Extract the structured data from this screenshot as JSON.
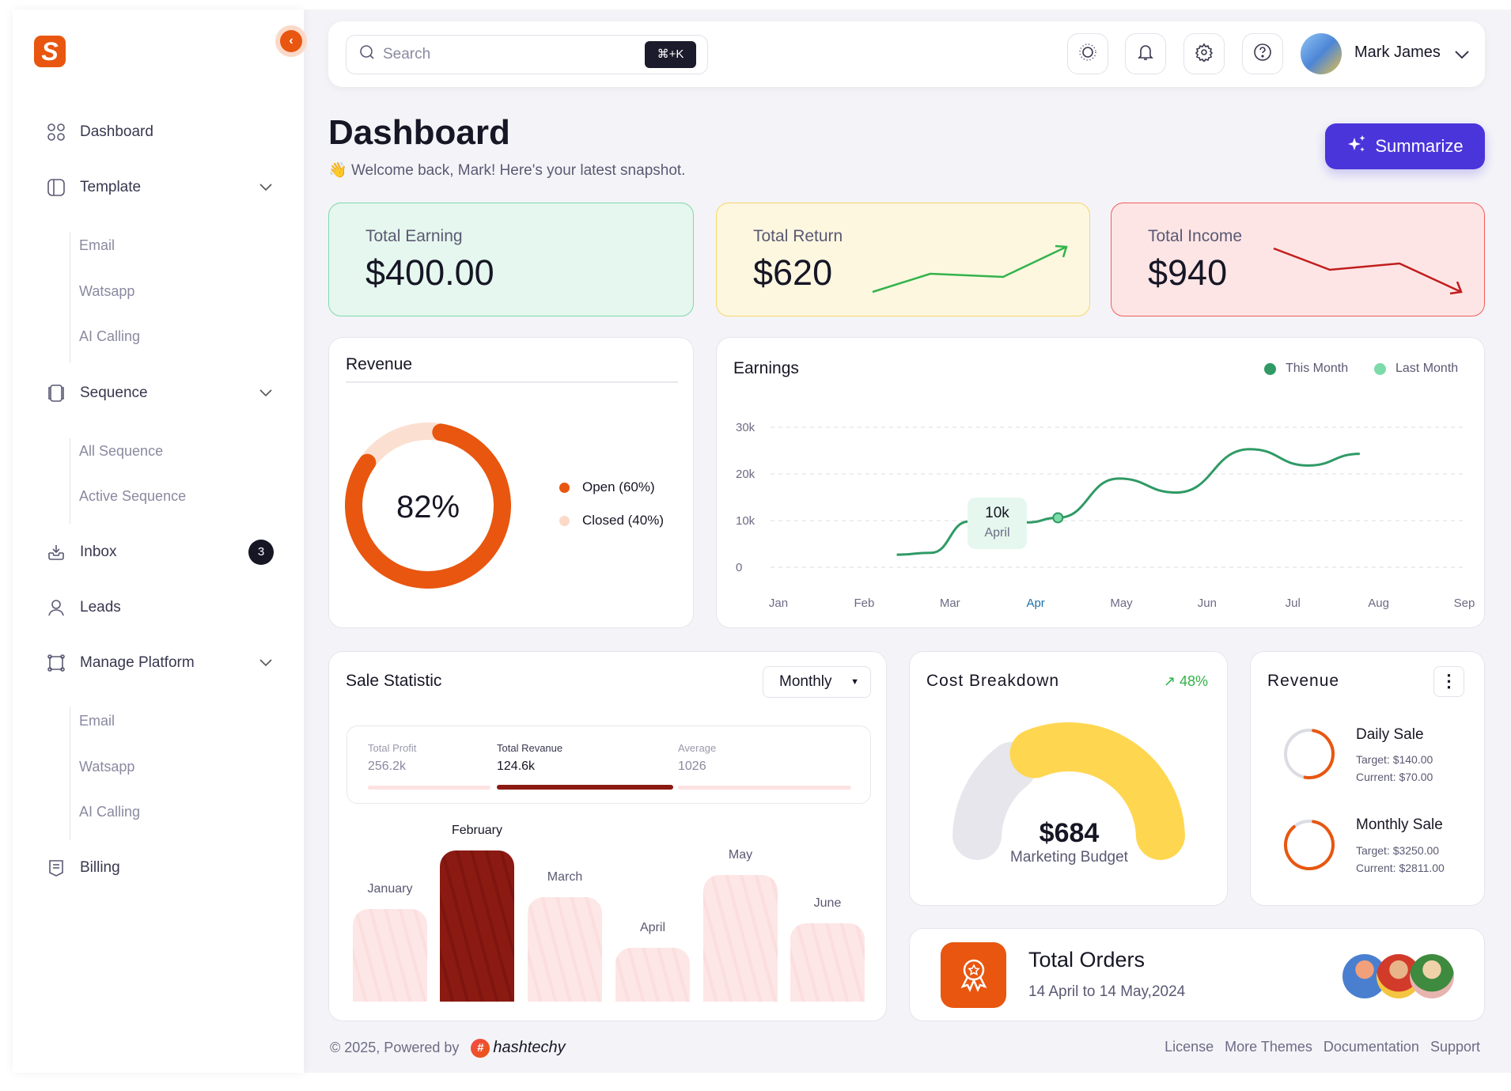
{
  "sidebar": {
    "logo_letter": "S",
    "items": [
      {
        "label": "Dashboard",
        "icon": "grid-icon"
      },
      {
        "label": "Template",
        "icon": "template-icon",
        "children": [
          "Email",
          "Watsapp",
          "AI Calling"
        ]
      },
      {
        "label": "Sequence",
        "icon": "sequence-icon",
        "children": [
          "All Sequence",
          "Active Sequence"
        ]
      },
      {
        "label": "Inbox",
        "icon": "inbox-icon",
        "badge": "3"
      },
      {
        "label": "Leads",
        "icon": "user-icon"
      },
      {
        "label": "Manage Platform",
        "icon": "frame-icon",
        "children": [
          "Email",
          "Watsapp",
          "AI Calling"
        ]
      },
      {
        "label": "Billing",
        "icon": "receipt-icon"
      }
    ]
  },
  "topbar": {
    "search_placeholder": "Search",
    "shortcut": "⌘+K",
    "icons": [
      "sun-icon",
      "bell-icon",
      "gear-icon",
      "help-icon"
    ],
    "user_name": "Mark James"
  },
  "header": {
    "title": "Dashboard",
    "welcome_emoji": "👋",
    "welcome": "Welcome back, Mark! Here's your latest snapshot.",
    "summarize_label": "Summarize"
  },
  "stats": [
    {
      "label": "Total Earning",
      "value": "$400.00",
      "color": "#7fd8ad",
      "bg": "#e5f7ee"
    },
    {
      "label": "Total Return",
      "value": "$620",
      "color": "#f6d76a",
      "bg": "#fdf7e0",
      "trend": "up"
    },
    {
      "label": "Total Income",
      "value": "$940",
      "color": "#f05c5c",
      "bg": "#fde5e5",
      "trend": "down"
    }
  ],
  "revenue_donut": {
    "title": "Revenue",
    "center_label": "82%",
    "percent": 82,
    "legend": [
      {
        "label": "Open (60%)",
        "color": "#e8560f"
      },
      {
        "label": "Closed (40%)",
        "color": "#fbd9c8"
      }
    ]
  },
  "chart_data": [
    {
      "type": "line",
      "title": "Earnings",
      "legend": [
        {
          "name": "This Month",
          "color": "#2f9a65"
        },
        {
          "name": "Last Month",
          "color": "#7ddbaa"
        }
      ],
      "legend_placement": "top-right",
      "x_ticks": [
        "Jan",
        "Feb",
        "Mar",
        "Apr",
        "May",
        "Jun",
        "Jul",
        "Aug",
        "Sep"
      ],
      "highlight_tick": "Apr",
      "y_ticks": [
        "0",
        "10k",
        "20k",
        "30k"
      ],
      "ylim": [
        0,
        30000
      ],
      "grid": true,
      "series": [
        {
          "name": "This Month",
          "points": [
            {
              "x": 2.38,
              "y": 2700
            },
            {
              "x": 2.78,
              "y": 3100
            },
            {
              "x": 3.22,
              "y": 9800
            },
            {
              "x": 3.67,
              "y": 9600
            },
            {
              "x": 3.9,
              "y": 9600
            },
            {
              "x": 4.26,
              "y": 10600
            },
            {
              "x": 4.97,
              "y": 19000
            },
            {
              "x": 5.64,
              "y": 16000
            },
            {
              "x": 6.5,
              "y": 25300
            },
            {
              "x": 7.18,
              "y": 21800
            },
            {
              "x": 7.78,
              "y": 24300
            }
          ]
        }
      ],
      "tooltip": {
        "value": "10k",
        "label": "April"
      }
    },
    {
      "type": "bar",
      "title": "Sale Statistic",
      "categories": [
        "January",
        "February",
        "March",
        "April",
        "May",
        "June"
      ],
      "values": [
        96,
        157,
        108,
        56,
        131,
        81
      ],
      "highlight": "February"
    }
  ],
  "sale_statistic": {
    "title": "Sale Statistic",
    "period": "Monthly",
    "metrics": [
      {
        "label": "Total Profit",
        "value": "256.2k"
      },
      {
        "label": "Total Revanue",
        "value": "124.6k",
        "active": true
      },
      {
        "label": "Average",
        "value": "1026"
      }
    ]
  },
  "cost_breakdown": {
    "title": "Cost Breakdown",
    "change": "48%",
    "amount": "$684",
    "label": "Marketing Budget"
  },
  "revenue_small": {
    "title": "Revenue",
    "items": [
      {
        "name": "Daily Sale",
        "target": "Target: $140.00",
        "current": "Current: $70.00",
        "progress": 0.5
      },
      {
        "name": "Monthly Sale",
        "target": "Target: $3250.00",
        "current": "Current: $2811.00",
        "progress": 0.86
      }
    ]
  },
  "total_orders": {
    "title": "Total Orders",
    "range": "14 April to 14 May,2024"
  },
  "footer": {
    "copyright": "© 2025, Powered by",
    "brand": "hashtechy",
    "links": [
      "License",
      "More Themes",
      "Documentation",
      "Support"
    ]
  }
}
